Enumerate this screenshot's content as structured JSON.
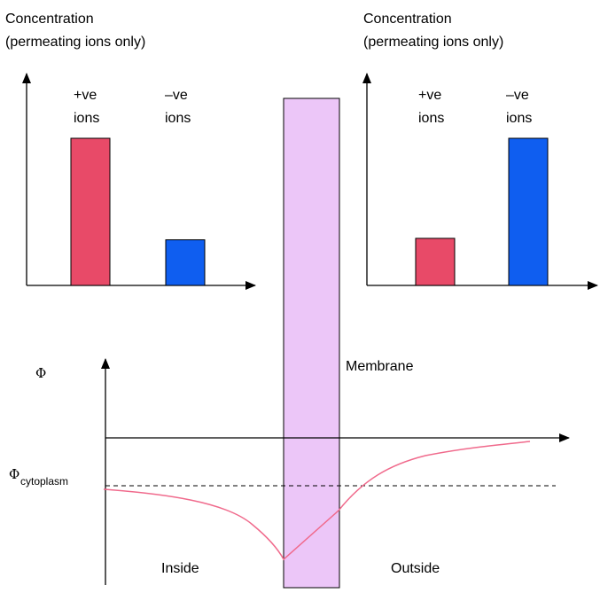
{
  "colors": {
    "positive_ion": "#e84a68",
    "negative_ion": "#0f5ef0",
    "membrane": "#ecc6f8",
    "potential_curve": "#f06a8c",
    "axis": "#000000"
  },
  "left_panel": {
    "title_line1": "Concentration",
    "title_line2": "(permeating ions only)",
    "pos_label_line1": "+ve",
    "pos_label_line2": "ions",
    "neg_label_line1": "–ve",
    "neg_label_line2": "ions"
  },
  "right_panel": {
    "title_line1": "Concentration",
    "title_line2": "(permeating ions only)",
    "pos_label_line1": "+ve",
    "pos_label_line2": "ions",
    "neg_label_line1": "–ve",
    "neg_label_line2": "ions"
  },
  "chart_data": [
    {
      "type": "bar",
      "categories": [
        "+ve ions",
        "–ve ions"
      ],
      "values": [
        100,
        31
      ],
      "title": "Concentration (permeating ions only)"
    },
    {
      "type": "bar",
      "categories": [
        "+ve ions",
        "–ve ions"
      ],
      "values": [
        32,
        100
      ],
      "title": "Concentration (permeating ions only)"
    }
  ],
  "membrane": {
    "label": "Membrane"
  },
  "potential_plot": {
    "y_symbol": "Φ",
    "reference_symbol": "Φ",
    "reference_subscript": "cytoplasm",
    "inside_label": "Inside",
    "outside_label": "Outside"
  }
}
